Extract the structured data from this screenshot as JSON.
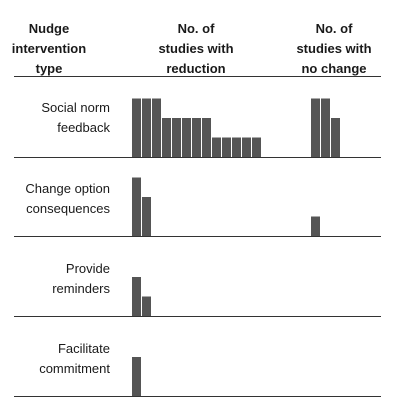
{
  "chart_data": {
    "type": "bar",
    "headers": {
      "type": [
        "Nudge",
        "intervention",
        "type"
      ],
      "reduction": [
        "No. of",
        "studies with",
        "reduction"
      ],
      "no_change": [
        "No. of",
        "studies with",
        "no change"
      ]
    },
    "categories": [
      [
        "Social norm",
        "feedback"
      ],
      [
        "Change option",
        "consequences"
      ],
      [
        "Provide",
        "reminders"
      ],
      [
        "Facilitate",
        "commitment"
      ]
    ],
    "series": [
      {
        "key": "reduction",
        "values": [
          [
            3,
            3,
            3,
            2,
            2,
            2,
            2,
            2,
            1,
            1,
            1,
            1,
            1
          ],
          [
            3,
            2
          ],
          [
            2,
            1
          ],
          [
            2
          ]
        ]
      },
      {
        "key": "no_change",
        "values": [
          [
            3,
            3,
            2
          ],
          [
            1
          ],
          [],
          []
        ]
      }
    ],
    "bar_color": "#555555",
    "line_color": "#333333"
  }
}
